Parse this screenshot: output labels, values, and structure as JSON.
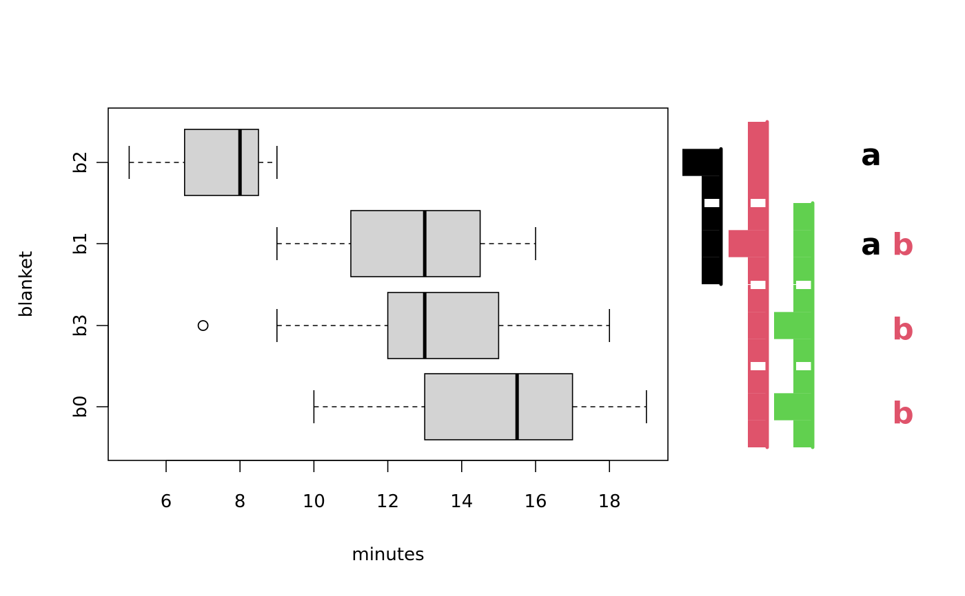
{
  "chart_data": {
    "type": "boxplot",
    "orientation": "horizontal",
    "title": "",
    "xlabel": "minutes",
    "ylabel": "blanket",
    "xlim": [
      4.5,
      19.6
    ],
    "xticks": [
      6,
      8,
      10,
      12,
      14,
      16,
      18
    ],
    "categories": [
      "b2",
      "b1",
      "b3",
      "b0"
    ],
    "boxes": [
      {
        "category": "b2",
        "whisker_low": 5,
        "q1": 6.5,
        "median": 8,
        "q3": 8.5,
        "whisker_high": 9,
        "outliers": []
      },
      {
        "category": "b1",
        "whisker_low": 9,
        "q1": 11,
        "median": 13,
        "q3": 14.5,
        "whisker_high": 16,
        "outliers": []
      },
      {
        "category": "b3",
        "whisker_low": 9,
        "q1": 12,
        "median": 13,
        "q3": 15,
        "whisker_high": 18,
        "outliers": [
          7
        ]
      },
      {
        "category": "b0",
        "whisker_low": 10,
        "q1": 13,
        "median": 15.5,
        "q3": 17,
        "whisker_high": 19,
        "outliers": []
      }
    ],
    "box_fill": "#d3d3d3",
    "groups": [
      {
        "letter": "a",
        "color": "#000000",
        "members": [
          "b2",
          "b1"
        ]
      },
      {
        "letter": "b",
        "color": "#df536b",
        "members": [
          "b1",
          "b3",
          "b0"
        ]
      },
      {
        "letter": "",
        "color": "#61d04f",
        "members": [
          "b1",
          "b3",
          "b0"
        ]
      }
    ],
    "letters_by_category": {
      "b2": [
        {
          "text": "a",
          "color": "#000000"
        }
      ],
      "b1": [
        {
          "text": "a",
          "color": "#000000"
        },
        {
          "text": "b",
          "color": "#df536b"
        }
      ],
      "b3": [
        {
          "text": "b",
          "color": "#df536b"
        }
      ],
      "b0": [
        {
          "text": "b",
          "color": "#df536b"
        }
      ]
    },
    "group_distribution_bars": [
      {
        "color": "#000000",
        "per_category": {
          "b2": [
            0,
            2,
            1
          ],
          "b1": [
            1,
            1,
            1
          ]
        }
      },
      {
        "color": "#df536b",
        "per_category": {
          "b2": [
            1,
            1
          ],
          "b1": [
            1,
            2,
            1
          ],
          "b3": [
            1,
            1,
            1
          ],
          "b0": [
            1,
            1,
            1
          ]
        }
      },
      {
        "color": "#61d04f",
        "per_category": {
          "b1": [
            1,
            1,
            1
          ],
          "b3": [
            1,
            2,
            1
          ],
          "b0": [
            1,
            2,
            1
          ]
        }
      }
    ],
    "grid": false,
    "legend": "none"
  }
}
